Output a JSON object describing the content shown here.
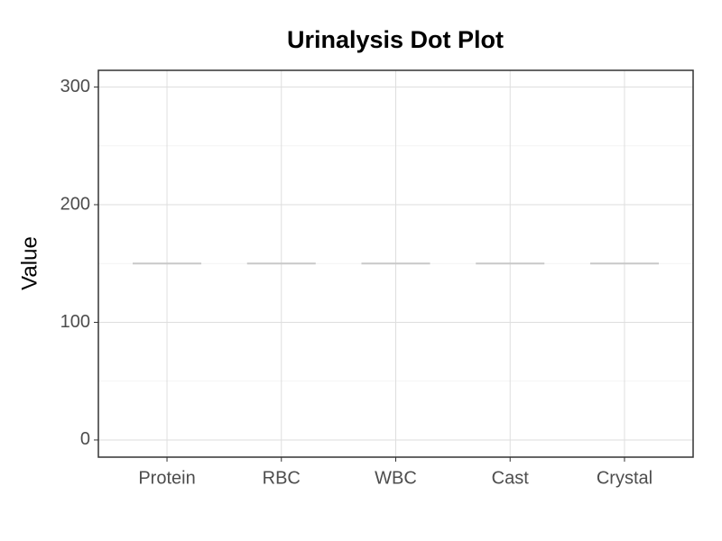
{
  "chart_data": {
    "type": "dot",
    "title": "Urinalysis Dot Plot",
    "y_label": "Value",
    "categories": [
      "Protein",
      "RBC",
      "WBC",
      "Cast",
      "Crystal"
    ],
    "values": [
      150,
      150,
      150,
      150,
      150
    ],
    "color": "#c8c8c8",
    "ylim": [
      -14.6,
      314.2
    ],
    "yticks": [
      0,
      100,
      200,
      300
    ],
    "yminor": [
      50,
      150,
      250
    ],
    "grid": true
  }
}
